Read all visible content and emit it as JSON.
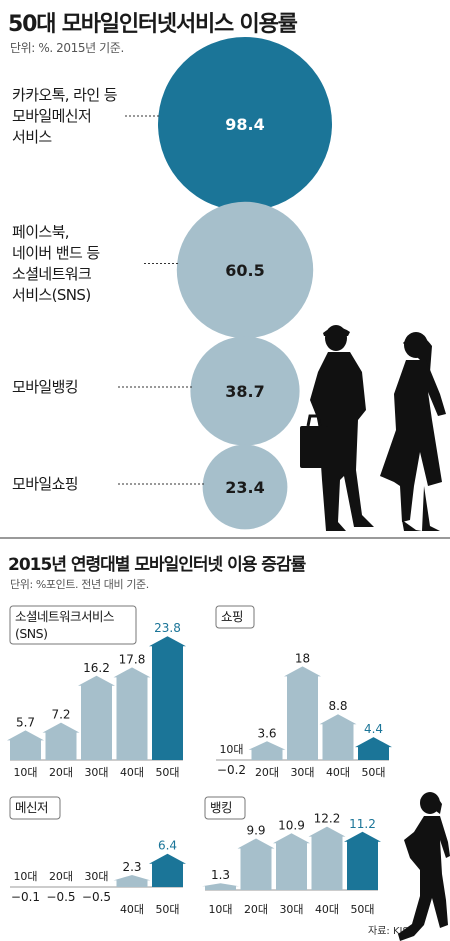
{
  "header": {
    "title": "50대 모바일인터넷서비스 이용률",
    "unit": "단위: %. 2015년 기준."
  },
  "section2": {
    "title": "2015년 연령대별 모바일인터넷 이용 증감률",
    "unit": "단위: %포인트. 전년 대비 기준."
  },
  "source": "자료: KISA",
  "colors": {
    "dark": "#1b7598",
    "light": "#a6bfcb",
    "text": "#1a1a1a"
  },
  "chart_data": [
    {
      "type": "bubble",
      "title": "50대 모바일인터넷서비스 이용률",
      "unit": "%",
      "items": [
        {
          "label_lines": [
            "카카오톡, 라인 등",
            "모바일메신저",
            "서비스"
          ],
          "value": 98.4
        },
        {
          "label_lines": [
            "페이스북,",
            "네이버 밴드 등",
            "소셜네트워크",
            "서비스(SNS)"
          ],
          "value": 60.5
        },
        {
          "label_lines": [
            "모바일뱅킹"
          ],
          "value": 38.7
        },
        {
          "label_lines": [
            "모바일쇼핑"
          ],
          "value": 23.4
        }
      ]
    },
    {
      "type": "bar",
      "title_lines": [
        "소셜네트워크서비스",
        "(SNS)"
      ],
      "categories": [
        "10대",
        "20대",
        "30대",
        "40대",
        "50대"
      ],
      "values": [
        5.7,
        7.2,
        16.2,
        17.8,
        23.8
      ],
      "labels": [
        "5.7",
        "7.2",
        "16.2",
        "17.8",
        "23.8"
      ]
    },
    {
      "type": "bar",
      "title_lines": [
        "쇼핑"
      ],
      "categories": [
        "10대",
        "20대",
        "30대",
        "40대",
        "50대"
      ],
      "values": [
        -0.2,
        3.6,
        18,
        8.8,
        4.4
      ],
      "labels": [
        "−0.2",
        "3.6",
        "18",
        "8.8",
        "4.4"
      ]
    },
    {
      "type": "bar",
      "title_lines": [
        "메신저"
      ],
      "categories": [
        "10대",
        "20대",
        "30대",
        "40대",
        "50대"
      ],
      "values": [
        -0.1,
        -0.5,
        -0.5,
        2.3,
        6.4
      ],
      "labels": [
        "−0.1",
        "−0.5",
        "−0.5",
        "2.3",
        "6.4"
      ]
    },
    {
      "type": "bar",
      "title_lines": [
        "뱅킹"
      ],
      "categories": [
        "10대",
        "20대",
        "30대",
        "40대",
        "50대"
      ],
      "values": [
        1.3,
        9.9,
        10.9,
        12.2,
        11.2
      ],
      "labels": [
        "1.3",
        "9.9",
        "10.9",
        "12.2",
        "11.2"
      ]
    }
  ]
}
